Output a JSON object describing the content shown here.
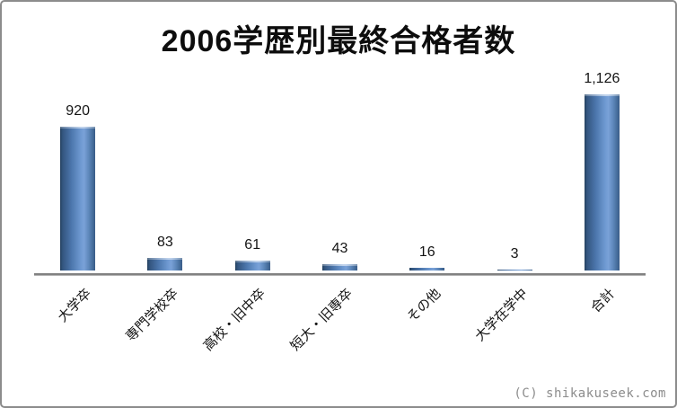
{
  "title": "2006学歴別最終合格者数",
  "watermark": "(C) shikakuseek.com",
  "chart_data": {
    "type": "bar",
    "title": "2006学歴別最終合格者数",
    "categories": [
      "大学卒",
      "専門学校卒",
      "高校・旧中卒",
      "短大・旧専卒",
      "その他",
      "大学在学中",
      "合計"
    ],
    "values": [
      920,
      83,
      61,
      43,
      16,
      3,
      1126
    ],
    "value_labels": [
      "920",
      "83",
      "61",
      "43",
      "16",
      "3",
      "1,126"
    ],
    "xlabel": "",
    "ylabel": "",
    "ylim": [
      0,
      1200
    ],
    "grid": false,
    "legend": false,
    "x_label_rotation_deg": 45,
    "colors": {
      "bar_main": "#4f81bd",
      "bar_edge_dark": "#24405e",
      "bar_highlight": "#7aa2d8",
      "axis_line": "#818181",
      "text": "#141414",
      "frame_border": "#8c8c8c",
      "watermark": "#8c8c8c",
      "background": "#ffffff"
    }
  }
}
